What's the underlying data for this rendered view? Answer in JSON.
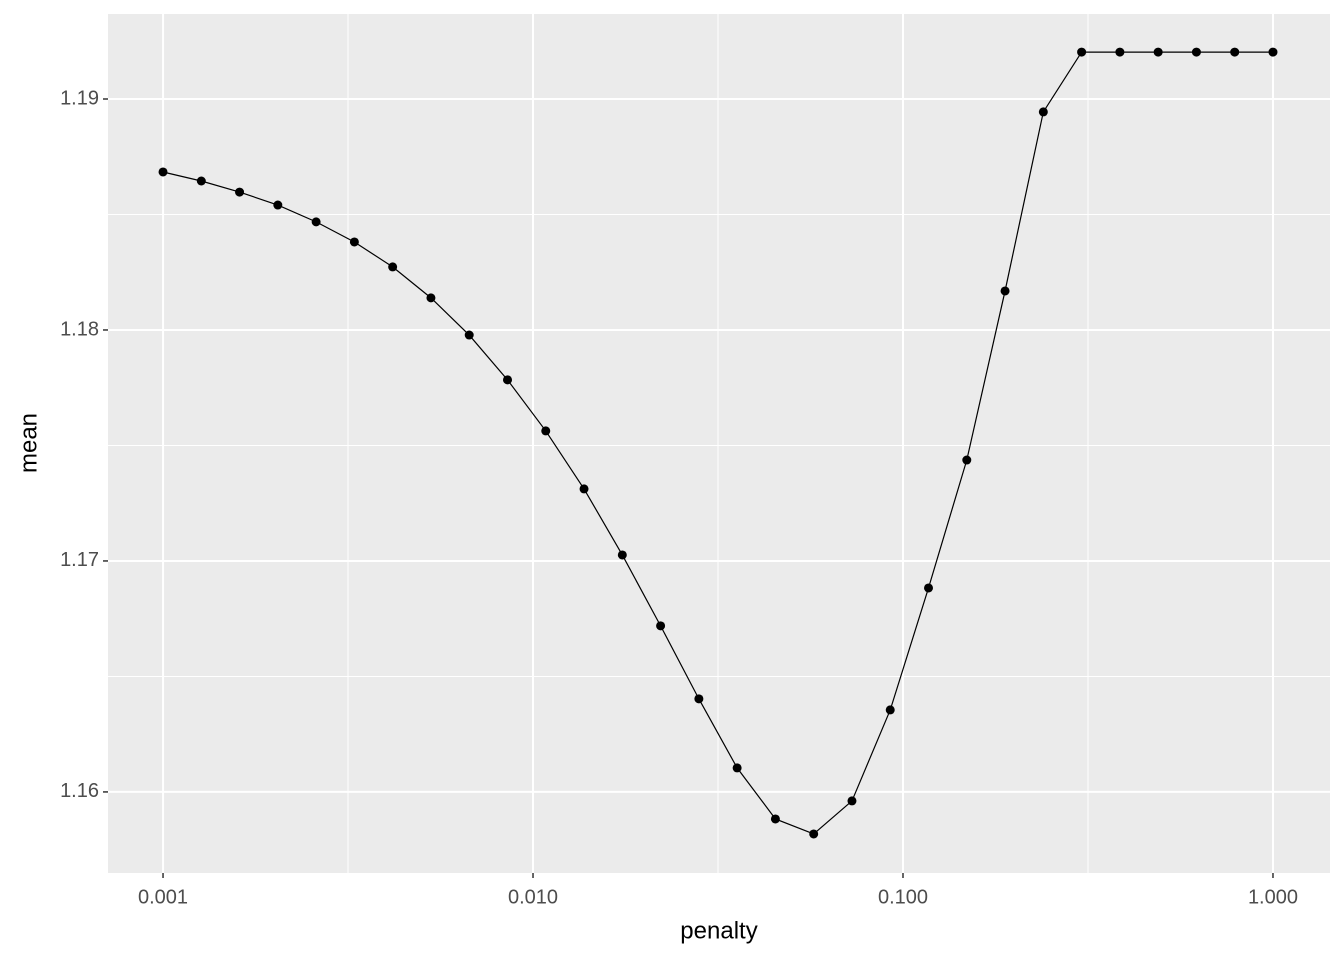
{
  "chart_data": {
    "type": "line",
    "x_label": "penalty",
    "y_label": "mean",
    "x": [
      0.001,
      0.001269,
      0.00161,
      0.002043,
      0.002593,
      0.00329,
      0.004175,
      0.005298,
      0.006723,
      0.008532,
      0.010826,
      0.013738,
      0.017433,
      0.022122,
      0.028072,
      0.035622,
      0.045204,
      0.057362,
      0.07279,
      0.092367,
      0.11721,
      0.14874,
      0.18874,
      0.2395,
      0.30392,
      0.38566,
      0.48939,
      0.62102,
      0.78805,
      1
    ],
    "series": [
      {
        "color": "#000000",
        "values": [
          1.18684,
          1.18645,
          1.18597,
          1.18541,
          1.18468,
          1.18381,
          1.18273,
          1.18139,
          1.17978,
          1.17784,
          1.17563,
          1.17312,
          1.17026,
          1.16719,
          1.16403,
          1.16104,
          1.15883,
          1.15818,
          1.15961,
          1.16355,
          1.16883,
          1.17437,
          1.18169,
          1.18944,
          1.19203,
          1.19203,
          1.19203,
          1.19203,
          1.19203,
          1.19203
        ]
      }
    ],
    "xscale": "log",
    "xlim": [
      0.00071,
      1.426
    ],
    "xticks": [
      0.001,
      {
        "value": 0.01,
        "label": "0.010"
      },
      {
        "value": 0.1,
        "label": "0.100"
      },
      {
        "value": 1,
        "label": "1.000"
      }
    ],
    "ylim": [
      1.15649,
      1.19368
    ],
    "yticks": [
      1.16,
      1.17,
      1.18,
      1.19
    ],
    "grid": true
  }
}
